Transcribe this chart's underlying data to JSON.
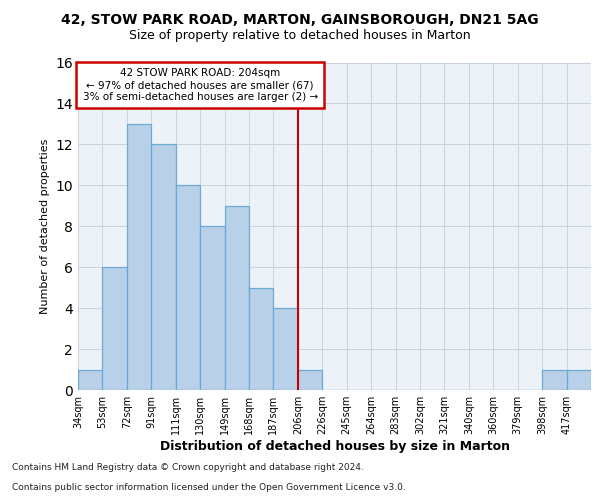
{
  "title1": "42, STOW PARK ROAD, MARTON, GAINSBOROUGH, DN21 5AG",
  "title2": "Size of property relative to detached houses in Marton",
  "xlabel": "Distribution of detached houses by size in Marton",
  "ylabel": "Number of detached properties",
  "footnote1": "Contains HM Land Registry data © Crown copyright and database right 2024.",
  "footnote2": "Contains public sector information licensed under the Open Government Licence v3.0.",
  "bin_labels": [
    "34sqm",
    "53sqm",
    "72sqm",
    "91sqm",
    "111sqm",
    "130sqm",
    "149sqm",
    "168sqm",
    "187sqm",
    "206sqm",
    "226sqm",
    "245sqm",
    "264sqm",
    "283sqm",
    "302sqm",
    "321sqm",
    "340sqm",
    "360sqm",
    "379sqm",
    "398sqm",
    "417sqm"
  ],
  "bar_values": [
    1,
    6,
    13,
    12,
    10,
    8,
    9,
    5,
    4,
    1,
    0,
    0,
    0,
    0,
    0,
    0,
    0,
    0,
    0,
    1,
    1
  ],
  "bar_color": "#b8d0e8",
  "bar_edge_color": "#6aaad4",
  "annotation_title": "42 STOW PARK ROAD: 204sqm",
  "annotation_line1": "← 97% of detached houses are smaller (67)",
  "annotation_line2": "3% of semi-detached houses are larger (2) →",
  "annotation_box_color": "#ffffff",
  "annotation_box_edge": "#cc0000",
  "vline_color": "#cc0000",
  "vline_pos": 9,
  "ylim": [
    0,
    16
  ],
  "yticks": [
    0,
    2,
    4,
    6,
    8,
    10,
    12,
    14,
    16
  ],
  "grid_color": "#c8d4e0",
  "bg_color": "#edf2f9"
}
